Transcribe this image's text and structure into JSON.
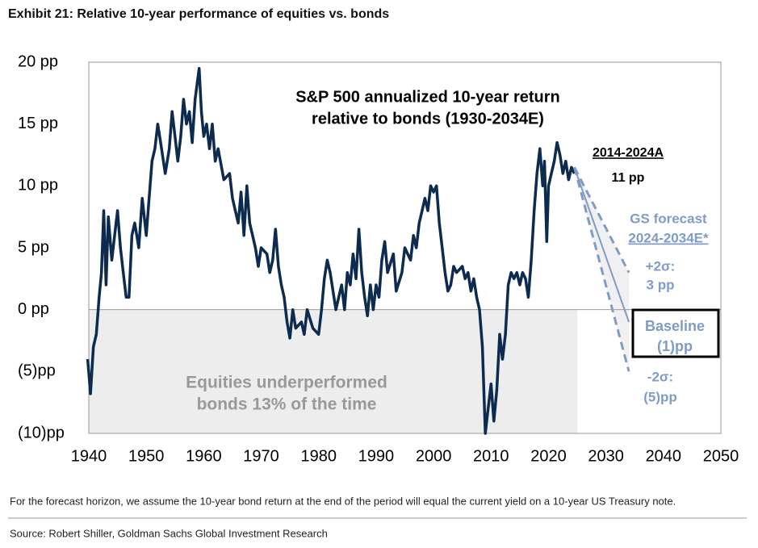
{
  "chart_data": {
    "type": "line",
    "title": "Exhibit 21: Relative 10-year performance of equities vs. bonds",
    "footnote": "For the forecast horizon, we assume the 10-year bond return at the end of the period will equal the current yield on a 10-year US Treasury note.",
    "source": "Source: Robert Shiller, Goldman Sachs Global Investment Research",
    "xlim": [
      1940,
      2050
    ],
    "xticks": [
      1940,
      1950,
      1960,
      1970,
      1980,
      1990,
      2000,
      2010,
      2020,
      2030,
      2040,
      2050
    ],
    "ylim": [
      -10,
      20
    ],
    "yticks": [
      {
        "value": -10,
        "label": "(10)pp"
      },
      {
        "value": -5,
        "label": "(5)pp"
      },
      {
        "value": 0,
        "label": "0 pp"
      },
      {
        "value": 5,
        "label": "5 pp"
      },
      {
        "value": 10,
        "label": "10 pp"
      },
      {
        "value": 15,
        "label": "15 pp"
      },
      {
        "value": 20,
        "label": "20 pp"
      }
    ],
    "grid": false,
    "zero_line": true,
    "shade_below_zero_until": 2025,
    "series": [
      {
        "color": "#0d2a4f",
        "dash": false,
        "x": [
          1939.8,
          1940.3,
          1940.8,
          1941.3,
          1941.8,
          1942.2,
          1942.6,
          1943,
          1943.4,
          1944,
          1944.5,
          1945,
          1945.5,
          1946,
          1946.5,
          1947,
          1947.5,
          1948,
          1948.7,
          1949.3,
          1950,
          1950.5,
          1951,
          1951.5,
          1952,
          1952.5,
          1953.3,
          1954,
          1954.5,
          1955,
          1955.5,
          1956,
          1956.5,
          1957,
          1957.5,
          1958,
          1958.5,
          1959.2,
          1959.6,
          1960,
          1960.5,
          1961,
          1961.5,
          1962,
          1962.5,
          1963.5,
          1964.5,
          1965,
          1965.5,
          1966,
          1966.5,
          1967,
          1967.5,
          1968,
          1969,
          1969.5,
          1970,
          1971,
          1971.5,
          1972,
          1972.5,
          1973,
          1973.5,
          1974,
          1974.5,
          1975,
          1975.5,
          1976,
          1977,
          1977.5,
          1978,
          1979,
          1980,
          1980.5,
          1981,
          1981.5,
          1982,
          1983,
          1983.5,
          1984,
          1984.5,
          1985,
          1985.5,
          1986,
          1986.5,
          1987,
          1987.5,
          1988,
          1988.5,
          1989,
          1989.5,
          1990,
          1990.5,
          1991,
          1991.5,
          1992,
          1993,
          1993.5,
          1994.5,
          1995,
          1996,
          1996.5,
          1997,
          1997.5,
          1998,
          1998.5,
          1999,
          1999.5,
          2000,
          2000.5,
          2001,
          2001.5,
          2002,
          2002.5,
          2003,
          2003.5,
          2004,
          2005,
          2005.5,
          2006,
          2006.5,
          2007,
          2007.5,
          2008,
          2008.5,
          2009,
          2009.5,
          2010,
          2010.5,
          2011,
          2011.5,
          2012,
          2012.5,
          2013,
          2013.5,
          2014,
          2014.5,
          2015,
          2015.5,
          2016,
          2016.5,
          2017,
          2017.5,
          2018,
          2018.5,
          2019,
          2019.3,
          2019.7,
          2020,
          2020.5,
          2021,
          2021.5,
          2022,
          2022.5,
          2023,
          2023.5,
          2024,
          2024.5
        ],
        "values": [
          -4,
          -6.8,
          -3,
          -2,
          1,
          3,
          8,
          2,
          7.5,
          4,
          6,
          8,
          5,
          3,
          1,
          1,
          6,
          7,
          5,
          9,
          6,
          9,
          12,
          13,
          15,
          13.5,
          11,
          13,
          16,
          14,
          12,
          14,
          17,
          15,
          16,
          13.5,
          17,
          19.5,
          16,
          14,
          15,
          13,
          15,
          12,
          13,
          10.5,
          11,
          9,
          8,
          7,
          9.5,
          6,
          10,
          7,
          5,
          3.5,
          5,
          4.5,
          3,
          4,
          6.5,
          3.5,
          2,
          1,
          -1,
          -2.3,
          0,
          -1.5,
          -1,
          -2,
          0,
          -1.5,
          -2,
          0,
          2.5,
          4,
          3,
          0,
          1,
          2,
          0,
          3,
          2,
          4.5,
          2.5,
          6.5,
          3,
          1,
          -0.5,
          2,
          0,
          2,
          1,
          4,
          5.5,
          3,
          4.5,
          1.5,
          3,
          5,
          4,
          6,
          5,
          7,
          8,
          9,
          8,
          10,
          9.5,
          10,
          7,
          5,
          3,
          1.5,
          2,
          3.5,
          3,
          3.5,
          2.5,
          3,
          1.5,
          2.5,
          1,
          0,
          -3,
          -10,
          -8,
          -6,
          -9,
          -6.5,
          -2,
          -4,
          -2,
          2,
          3,
          2.5,
          3,
          2,
          3,
          2.5,
          1,
          4,
          8,
          11,
          13,
          10,
          12,
          5.5,
          10,
          11,
          12,
          13.5,
          12.5,
          11,
          12,
          10.5,
          11.5,
          11
        ]
      },
      {
        "color": "#7f9cc6",
        "dash": true,
        "x": [
          2024.5,
          2034
        ],
        "values": [
          11.5,
          3
        ]
      },
      {
        "color": "#7f9cc6",
        "dash": false,
        "x": [
          2024.5,
          2034
        ],
        "values": [
          11.5,
          -1
        ]
      },
      {
        "color": "#7f9cc6",
        "dash": true,
        "x": [
          2024.5,
          2034
        ],
        "values": [
          11.5,
          -5
        ]
      }
    ],
    "annotations": [
      "S&P 500 annualized 10-year return",
      "relative to bonds (1930-2034E)",
      "2014-2024A",
      "11 pp",
      "GS forecast",
      "2024-2034E*",
      "+2σ:",
      "3 pp",
      "Baseline",
      "(1)pp",
      "-2σ:",
      "(5)pp",
      "Equities underperformed",
      "bonds 13% of the time"
    ]
  }
}
